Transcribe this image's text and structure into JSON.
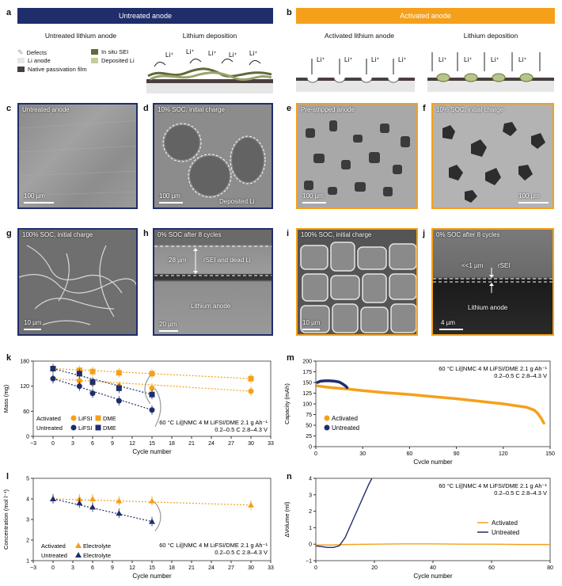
{
  "panels": {
    "a": {
      "letter": "a",
      "banner": "Untreated anode",
      "left_title": "Untreated lithium anode",
      "right_title": "Lithium deposition",
      "legend": [
        "Defects",
        "Li anode",
        "Native passivation film",
        "In situ SEI",
        "Deposited Li"
      ],
      "ion": "Li⁺"
    },
    "b": {
      "letter": "b",
      "banner": "Activated anode",
      "left_title": "Activated lithium anode",
      "right_title": "Lithium deposition",
      "ion": "Li⁺"
    },
    "c": {
      "letter": "c",
      "caption": "Untreated anode",
      "scale": "100 µm"
    },
    "d": {
      "letter": "d",
      "caption": "10% SOC, initial charge",
      "scale": "100 µm",
      "note": "Deposited Li"
    },
    "e": {
      "letter": "e",
      "caption": "Pre-stripped anode",
      "scale": "100 µm"
    },
    "f": {
      "letter": "f",
      "caption": "10% SOC, initial charge",
      "scale": "100 µm"
    },
    "g": {
      "letter": "g",
      "caption": "100% SOC, initial charge",
      "scale": "10 µm"
    },
    "h": {
      "letter": "h",
      "caption": "0% SOC after 8 cycles",
      "scale": "20 µm",
      "thickness": "28 µm",
      "layer": "rSEI and dead Li",
      "bulk": "Lithium anode"
    },
    "i": {
      "letter": "i",
      "caption": "100% SOC, initial charge",
      "scale": "10 µm"
    },
    "j": {
      "letter": "j",
      "caption": "0% SOC after 8 cycles",
      "scale": "4 µm",
      "thickness": "<<1 µm",
      "layer": "rSEI",
      "bulk": "Lithium anode"
    },
    "k": {
      "letter": "k"
    },
    "l": {
      "letter": "l"
    },
    "m": {
      "letter": "m"
    },
    "n": {
      "letter": "n"
    }
  },
  "colors": {
    "navy": "#1f2d6b",
    "orange": "#f5a01a",
    "navy_dark": "#14285e"
  },
  "chart_data": [
    {
      "panel": "k",
      "type": "scatter",
      "xlabel": "Cycle number",
      "ylabel": "Mass (mg)",
      "xlim": [
        -3,
        33
      ],
      "ylim": [
        0,
        180
      ],
      "xticks": [
        -3,
        0,
        3,
        6,
        9,
        12,
        15,
        18,
        21,
        24,
        27,
        30,
        33
      ],
      "yticks": [
        0,
        60,
        120,
        180
      ],
      "annotation": [
        "60 °C Li||NMC 4 M LiFSI/DME 2.1 g Ah⁻¹",
        "0.2–0.5 C 2.8–4.3 V"
      ],
      "legend": {
        "rows": [
          "Activated",
          "Untreated"
        ],
        "cols": [
          "LiFSI",
          "DME"
        ]
      },
      "series": [
        {
          "name": "Activated LiFSI",
          "marker": "circle",
          "color": "#f5a01a",
          "x": [
            0,
            4,
            6,
            10,
            15,
            30
          ],
          "y": [
            138,
            133,
            127,
            120,
            115,
            108
          ]
        },
        {
          "name": "Activated DME",
          "marker": "square",
          "color": "#f5a01a",
          "x": [
            0,
            4,
            6,
            10,
            15,
            30
          ],
          "y": [
            162,
            158,
            155,
            152,
            150,
            138
          ]
        },
        {
          "name": "Untreated LiFSI",
          "marker": "circle",
          "color": "#1f2d6b",
          "x": [
            0,
            4,
            6,
            10,
            15
          ],
          "y": [
            138,
            120,
            103,
            85,
            63
          ]
        },
        {
          "name": "Untreated DME",
          "marker": "square",
          "color": "#1f2d6b",
          "x": [
            0,
            4,
            6,
            10,
            15
          ],
          "y": [
            162,
            150,
            130,
            115,
            100
          ]
        }
      ]
    },
    {
      "panel": "m",
      "type": "scatter",
      "xlabel": "Cycle number",
      "ylabel": "Capacity (mAh)",
      "xlim": [
        0,
        150
      ],
      "ylim": [
        0,
        200
      ],
      "xticks": [
        0,
        30,
        60,
        90,
        120,
        150
      ],
      "yticks": [
        0,
        25,
        50,
        75,
        100,
        125,
        150,
        175,
        200
      ],
      "annotation": [
        "60 °C Li||NMC 4 M LiFSI/DME 2.1 g Ah⁻¹",
        "0.2–0.5 C 2.8–4.3 V"
      ],
      "series": [
        {
          "name": "Activated",
          "color": "#f5a01a",
          "x": [
            1,
            5,
            10,
            20,
            30,
            45,
            60,
            75,
            90,
            105,
            120,
            135,
            140,
            142,
            144,
            146
          ],
          "y": [
            142,
            140,
            138,
            135,
            131,
            126,
            122,
            117,
            112,
            106,
            100,
            92,
            85,
            78,
            68,
            55
          ]
        },
        {
          "name": "Untreated",
          "color": "#1f2d6b",
          "x": [
            1,
            3,
            6,
            9,
            12,
            15,
            17,
            19,
            20
          ],
          "y": [
            150,
            153,
            154,
            154,
            153,
            151,
            147,
            142,
            138
          ]
        }
      ]
    },
    {
      "panel": "l",
      "type": "scatter",
      "xlabel": "Cycle number",
      "ylabel": "Concentration (mol l⁻¹)",
      "xlim": [
        -3,
        33
      ],
      "ylim": [
        1,
        5
      ],
      "xticks": [
        -3,
        0,
        3,
        6,
        9,
        12,
        15,
        18,
        21,
        24,
        27,
        30,
        33
      ],
      "yticks": [
        1,
        2,
        3,
        4,
        5
      ],
      "annotation": [
        "60 °C Li||NMC 4 M LiFSI/DME 2.1 g Ah⁻¹",
        "0.2–0.5 C 2.8–4.3 V"
      ],
      "legend": {
        "rows": [
          "Activated",
          "Untreated"
        ],
        "cols": [
          "Electrolyte"
        ]
      },
      "series": [
        {
          "name": "Activated Electrolyte",
          "marker": "triangle",
          "color": "#f5a01a",
          "x": [
            0,
            4,
            6,
            10,
            15,
            30
          ],
          "y": [
            4.0,
            4.0,
            4.0,
            3.9,
            3.9,
            3.7
          ]
        },
        {
          "name": "Untreated Electrolyte",
          "marker": "triangle",
          "color": "#1f2d6b",
          "x": [
            0,
            4,
            6,
            10,
            15
          ],
          "y": [
            4.0,
            3.8,
            3.6,
            3.3,
            2.9
          ]
        }
      ]
    },
    {
      "panel": "n",
      "type": "line",
      "xlabel": "Cycle number",
      "ylabel": "ΔVolume (ml)",
      "xlim": [
        0,
        80
      ],
      "ylim": [
        -1,
        4
      ],
      "xticks": [
        0,
        20,
        40,
        60,
        80
      ],
      "yticks": [
        -1,
        0,
        1,
        2,
        3,
        4
      ],
      "annotation": [
        "60 °C Li||NMC 4 M LiFSI/DME 2.1 g Ah⁻¹",
        "0.2–0.5 C 2.8–4.3 V"
      ],
      "series": [
        {
          "name": "Activated",
          "color": "#f5a01a",
          "x": [
            0,
            5,
            10,
            20,
            30,
            40,
            50,
            60,
            70,
            80
          ],
          "y": [
            -0.05,
            -0.05,
            -0.02,
            0.0,
            0.02,
            0.02,
            0.0,
            0.0,
            -0.02,
            -0.02
          ]
        },
        {
          "name": "Untreated",
          "color": "#1f2d6b",
          "x": [
            0,
            2,
            4,
            6,
            8,
            10,
            12,
            14,
            16,
            18,
            20
          ],
          "y": [
            -0.1,
            -0.15,
            -0.2,
            -0.2,
            -0.1,
            0.4,
            1.2,
            2.0,
            2.8,
            3.6,
            4.3
          ]
        }
      ]
    }
  ]
}
